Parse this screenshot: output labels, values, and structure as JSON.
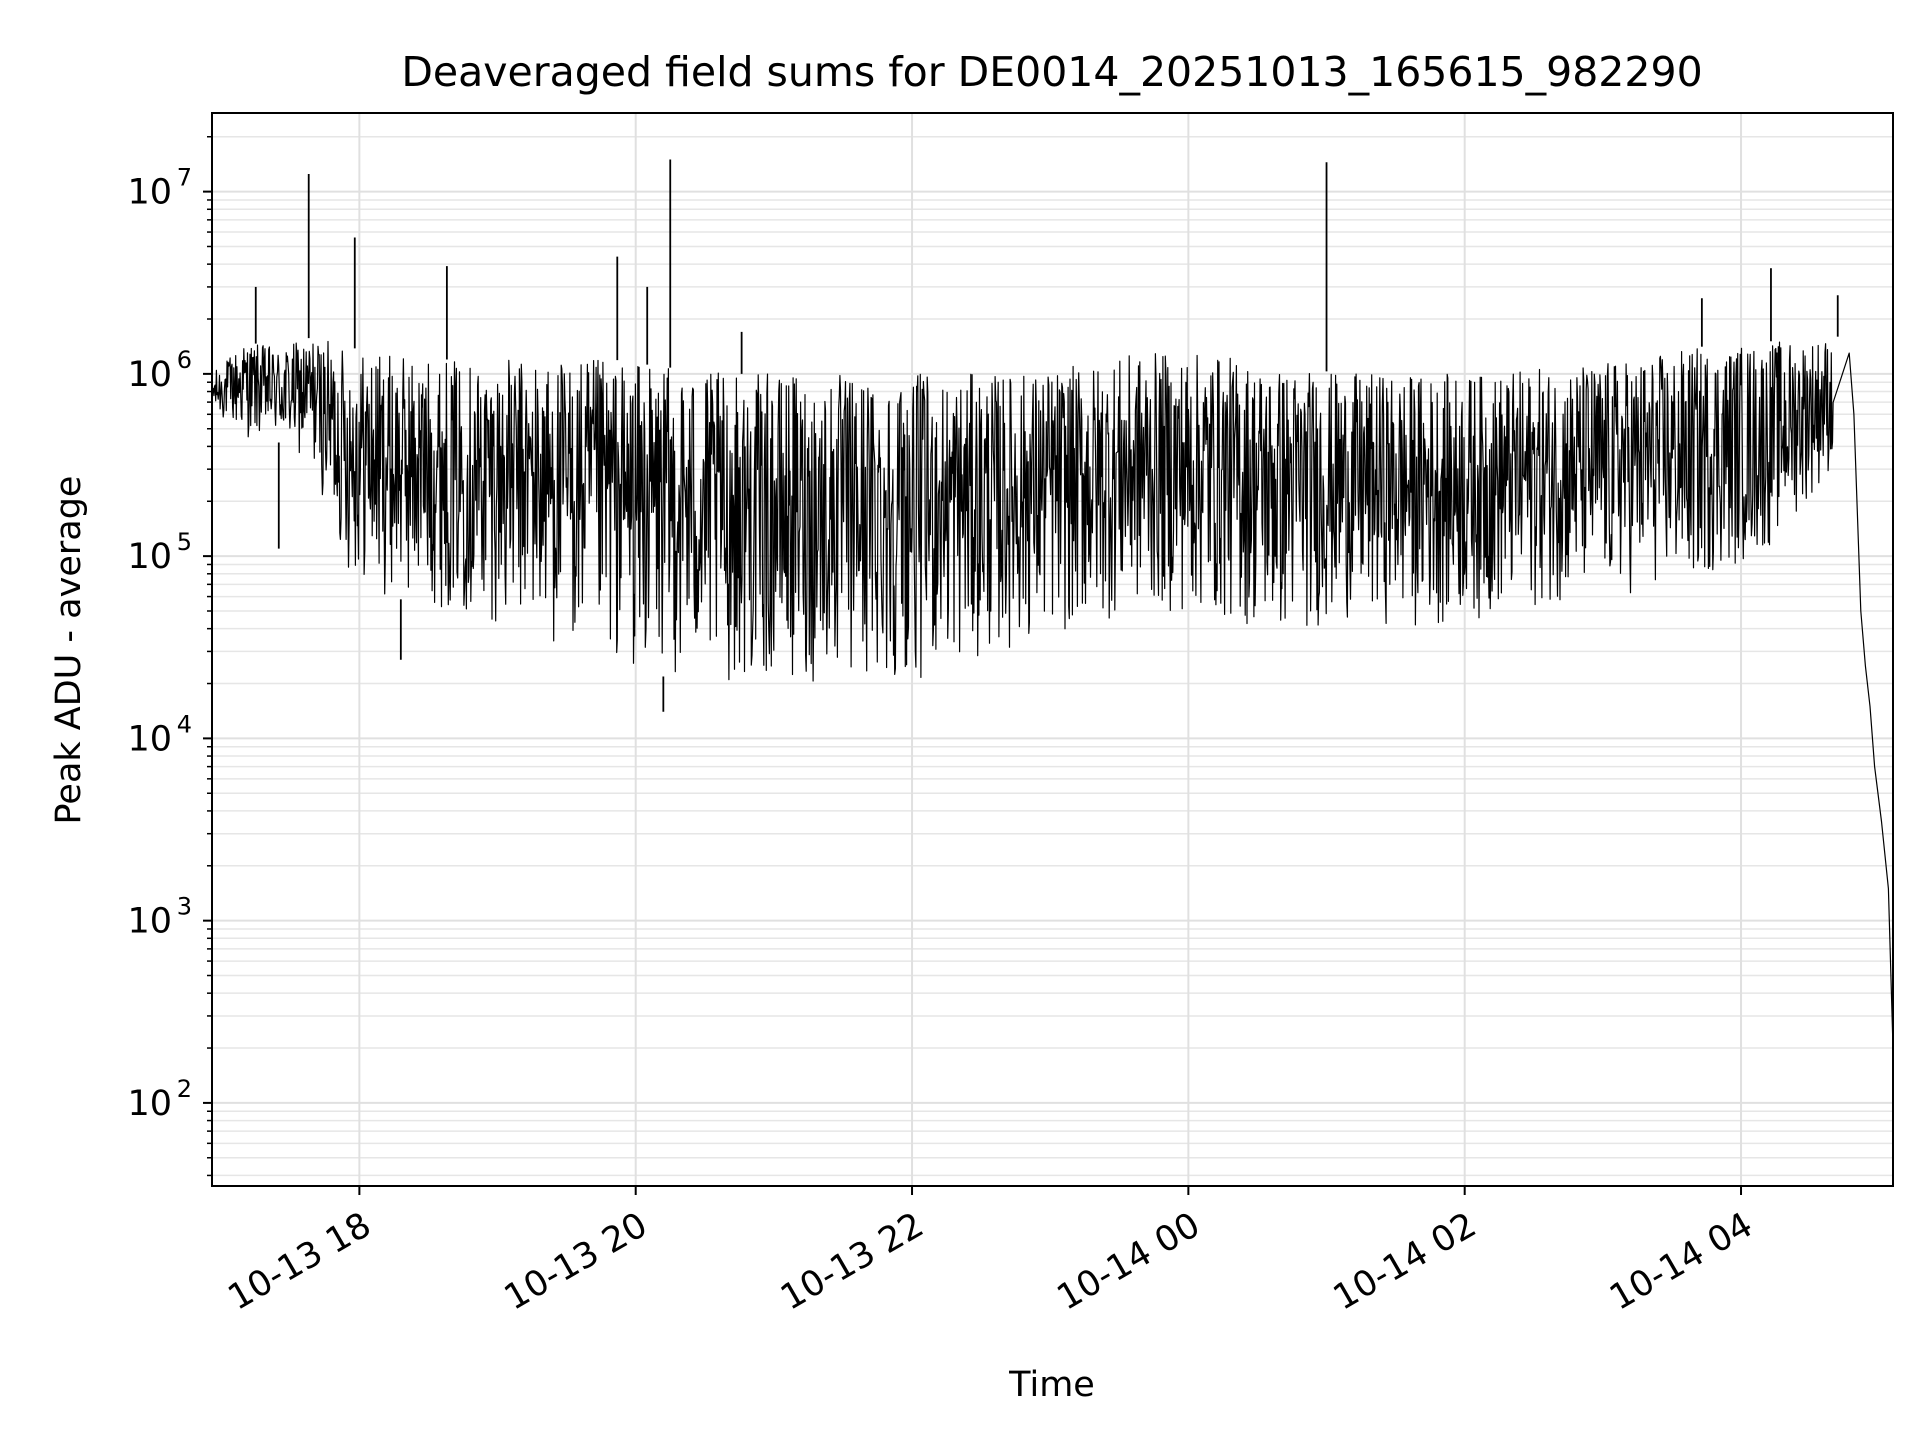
{
  "chart_data": {
    "type": "line",
    "title": "Deaveraged field sums for DE0014_20251013_165615_982290",
    "xlabel": "Time",
    "ylabel": "Peak ADU - average",
    "yscale": "log",
    "xlim": [
      "2025-10-13 16:56",
      "2025-10-14 05:06"
    ],
    "ylim": [
      35,
      27000000
    ],
    "grid": "on (major and minor)",
    "x_ticks": [
      {
        "value": "2025-10-13 18:00",
        "label": "10-13 18"
      },
      {
        "value": "2025-10-13 20:00",
        "label": "10-13 20"
      },
      {
        "value": "2025-10-13 22:00",
        "label": "10-13 22"
      },
      {
        "value": "2025-10-14 00:00",
        "label": "10-14 00"
      },
      {
        "value": "2025-10-14 02:00",
        "label": "10-14 02"
      },
      {
        "value": "2025-10-14 04:00",
        "label": "10-14 04"
      }
    ],
    "y_ticks": [
      {
        "value": 100,
        "base": "10",
        "exp": "2"
      },
      {
        "value": 1000,
        "base": "10",
        "exp": "3"
      },
      {
        "value": 10000,
        "base": "10",
        "exp": "4"
      },
      {
        "value": 100000,
        "base": "10",
        "exp": "5"
      },
      {
        "value": 1000000,
        "base": "10",
        "exp": "6"
      },
      {
        "value": 10000000,
        "base": "10",
        "exp": "7"
      }
    ],
    "series": [
      {
        "color": "#000000",
        "envelope": [
          {
            "t": "2025-10-13 16:56",
            "low": 600000,
            "high": 1000000
          },
          {
            "t": "2025-10-13 17:10",
            "low": 450000,
            "high": 1500000
          },
          {
            "t": "2025-10-13 17:25",
            "low": 420000,
            "high": 1400000
          },
          {
            "t": "2025-10-13 17:40",
            "low": 300000,
            "high": 1600000
          },
          {
            "t": "2025-10-13 17:55",
            "low": 80000,
            "high": 1400000
          },
          {
            "t": "2025-10-13 18:10",
            "low": 60000,
            "high": 1300000
          },
          {
            "t": "2025-10-13 18:30",
            "low": 55000,
            "high": 1200000
          },
          {
            "t": "2025-10-13 18:50",
            "low": 45000,
            "high": 1200000
          },
          {
            "t": "2025-10-13 19:10",
            "low": 40000,
            "high": 1200000
          },
          {
            "t": "2025-10-13 19:30",
            "low": 30000,
            "high": 1200000
          },
          {
            "t": "2025-10-13 19:50",
            "low": 25000,
            "high": 1200000
          },
          {
            "t": "2025-10-13 20:10",
            "low": 22000,
            "high": 1100000
          },
          {
            "t": "2025-10-13 20:40",
            "low": 20000,
            "high": 1000000
          },
          {
            "t": "2025-10-13 21:10",
            "low": 19000,
            "high": 1000000
          },
          {
            "t": "2025-10-13 21:40",
            "low": 19000,
            "high": 1000000
          },
          {
            "t": "2025-10-13 22:10",
            "low": 22000,
            "high": 1000000
          },
          {
            "t": "2025-10-13 22:40",
            "low": 30000,
            "high": 1000000
          },
          {
            "t": "2025-10-13 23:10",
            "low": 38000,
            "high": 1100000
          },
          {
            "t": "2025-10-13 23:40",
            "low": 50000,
            "high": 1300000
          },
          {
            "t": "2025-10-14 00:10",
            "low": 45000,
            "high": 1300000
          },
          {
            "t": "2025-10-14 00:40",
            "low": 35000,
            "high": 1100000
          },
          {
            "t": "2025-10-14 01:10",
            "low": 45000,
            "high": 1000000
          },
          {
            "t": "2025-10-14 01:40",
            "low": 40000,
            "high": 1000000
          },
          {
            "t": "2025-10-14 02:10",
            "low": 45000,
            "high": 1000000
          },
          {
            "t": "2025-10-14 02:40",
            "low": 55000,
            "high": 1100000
          },
          {
            "t": "2025-10-14 03:10",
            "low": 60000,
            "high": 1200000
          },
          {
            "t": "2025-10-14 03:40",
            "low": 70000,
            "high": 1400000
          },
          {
            "t": "2025-10-14 04:10",
            "low": 100000,
            "high": 1500000
          },
          {
            "t": "2025-10-14 04:40",
            "low": 300000,
            "high": 1600000
          }
        ],
        "spikes": [
          {
            "t": "2025-10-13 17:15",
            "value": 3000000
          },
          {
            "t": "2025-10-13 17:25",
            "value": 110000
          },
          {
            "t": "2025-10-13 17:38",
            "value": 12500000
          },
          {
            "t": "2025-10-13 17:58",
            "value": 5600000
          },
          {
            "t": "2025-10-13 18:18",
            "value": 27000
          },
          {
            "t": "2025-10-13 18:38",
            "value": 3900000
          },
          {
            "t": "2025-10-13 19:52",
            "value": 4400000
          },
          {
            "t": "2025-10-13 20:05",
            "value": 3000000
          },
          {
            "t": "2025-10-13 20:12",
            "value": 14000
          },
          {
            "t": "2025-10-13 20:15",
            "value": 15000000
          },
          {
            "t": "2025-10-13 20:46",
            "value": 1700000
          },
          {
            "t": "2025-10-14 01:00",
            "value": 14500000
          },
          {
            "t": "2025-10-14 03:43",
            "value": 2600000
          },
          {
            "t": "2025-10-14 04:13",
            "value": 3800000
          },
          {
            "t": "2025-10-14 04:42",
            "value": 2700000
          }
        ],
        "tail": [
          {
            "t": "2025-10-14 04:47",
            "value": 1300000
          },
          {
            "t": "2025-10-14 04:49",
            "value": 600000
          },
          {
            "t": "2025-10-14 04:52",
            "value": 50000
          },
          {
            "t": "2025-10-14 04:54",
            "value": 25000
          },
          {
            "t": "2025-10-14 04:56",
            "value": 15000
          },
          {
            "t": "2025-10-14 04:58",
            "value": 7000
          },
          {
            "t": "2025-10-14 05:01",
            "value": 3500
          },
          {
            "t": "2025-10-14 05:04",
            "value": 1500
          },
          {
            "t": "2025-10-14 05:06",
            "value": 200
          }
        ]
      }
    ]
  }
}
